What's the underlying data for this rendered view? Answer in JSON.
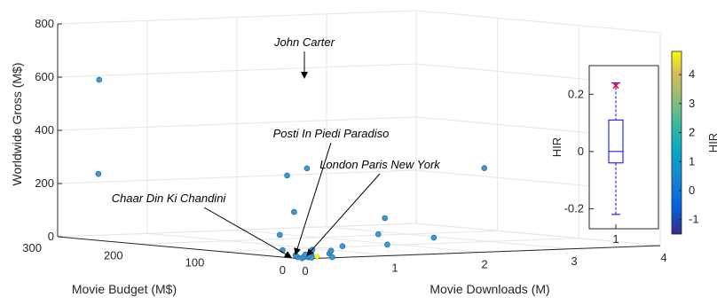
{
  "chart_data": [
    {
      "type": "scatter",
      "dimensions": "3d",
      "xlabel": "Movie Downloads (M)",
      "ylabel": "Movie Budget (M$)",
      "zlabel": "Worldwide Gross (M$)",
      "xlim": [
        0,
        4
      ],
      "ylim": [
        0,
        300
      ],
      "zlim": [
        0,
        800
      ],
      "xticks": [
        "0",
        "1",
        "2",
        "3",
        "4"
      ],
      "yticks": [
        "0",
        "100",
        "200",
        "300"
      ],
      "zticks": [
        "0",
        "200",
        "400",
        "600",
        "800"
      ],
      "grid": true,
      "marker_color": "#3a9ad9",
      "points": [
        {
          "x": 0.0,
          "y": 250,
          "z": 250
        },
        {
          "x": 0.1,
          "y": 260,
          "z": 600
        },
        {
          "x": 2.6,
          "y": 280,
          "z": 230
        },
        {
          "x": 0.2,
          "y": 40,
          "z": 300
        },
        {
          "x": 0.4,
          "y": 10,
          "z": 12
        },
        {
          "x": 0.55,
          "y": 70,
          "z": 150
        },
        {
          "x": 2.4,
          "y": 40,
          "z": 300
        },
        {
          "x": 0.2,
          "y": 10,
          "z": 10
        },
        {
          "x": 0.3,
          "y": 20,
          "z": 25
        },
        {
          "x": 0.5,
          "y": 5,
          "z": 40
        },
        {
          "x": 2.2,
          "y": 80,
          "z": 30
        },
        {
          "x": 0.6,
          "y": 30,
          "z": 15
        },
        {
          "x": 0.9,
          "y": 5,
          "z": 80
        },
        {
          "x": 1.2,
          "y": 30,
          "z": 130
        },
        {
          "x": 1.0,
          "y": 5,
          "z": 40
        },
        {
          "x": 0.0,
          "y": 5,
          "z": 5
        },
        {
          "x": 0.05,
          "y": 4,
          "z": 3
        },
        {
          "x": 0.1,
          "y": 3,
          "z": 4
        },
        {
          "x": 0.02,
          "y": 2,
          "z": 2
        },
        {
          "x": 0.08,
          "y": 6,
          "z": 6
        },
        {
          "x": 0.12,
          "y": 1,
          "z": 3
        },
        {
          "x": 0.15,
          "y": 8,
          "z": 8
        },
        {
          "x": 0.04,
          "y": 12,
          "z": 10
        },
        {
          "x": 0.07,
          "y": 3,
          "z": 15
        },
        {
          "x": 0.3,
          "y": 60,
          "z": 70
        },
        {
          "x": 0.15,
          "y": 40,
          "z": 20
        },
        {
          "x": 0.35,
          "y": 1,
          "z": 2
        }
      ],
      "annotations": [
        {
          "text": "John Carter",
          "x": 0.1,
          "y": 260,
          "z": 600
        },
        {
          "text": "Posti In Piedi Paradiso",
          "x": 0.02,
          "y": 2,
          "z": 2
        },
        {
          "text": "London Paris New York",
          "x": 0.04,
          "y": 1,
          "z": 1
        },
        {
          "text": "Chaar Din Ki Chandini",
          "x": 0.0,
          "y": 5,
          "z": 5
        }
      ]
    },
    {
      "type": "box",
      "ylabel": "HIR",
      "categories": [
        "1"
      ],
      "yticks": [
        "-0.2",
        "0",
        "0.2"
      ],
      "ylim": [
        -0.27,
        0.3
      ],
      "box": {
        "min": -0.22,
        "q1": -0.04,
        "median": 0.0,
        "q3": 0.11,
        "max": 0.24,
        "outliers": [
          0.23
        ]
      },
      "box_color": "#0000ff",
      "outlier_color": "#ff0000"
    }
  ],
  "colorbar": {
    "label": "HIR",
    "ticks": [
      "-1",
      "0",
      "1",
      "2",
      "3",
      "4"
    ],
    "range": [
      -1.5,
      4.8
    ]
  }
}
